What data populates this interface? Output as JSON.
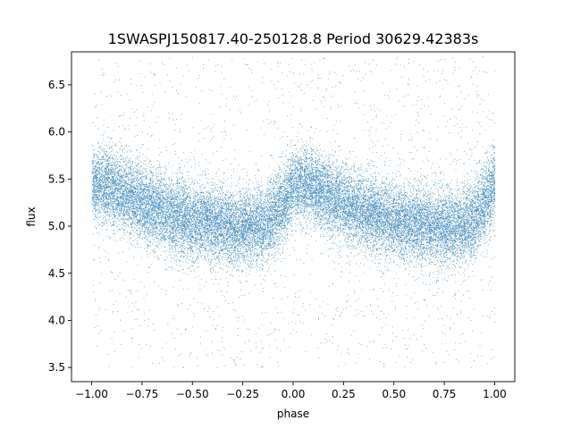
{
  "chart_data": {
    "type": "scatter",
    "title": "1SWASPJ150817.40-250128.8 Period 30629.42383s",
    "xlabel": "phase",
    "ylabel": "flux",
    "xlim": [
      -1.1,
      1.1
    ],
    "ylim": [
      3.35,
      6.85
    ],
    "x_ticks": [
      -1.0,
      -0.75,
      -0.5,
      -0.25,
      0.0,
      0.25,
      0.5,
      0.75,
      1.0
    ],
    "x_tick_labels": [
      "−1.00",
      "−0.75",
      "−0.50",
      "−0.25",
      "0.00",
      "0.25",
      "0.50",
      "0.75",
      "1.00"
    ],
    "y_ticks": [
      3.5,
      4.0,
      4.5,
      5.0,
      5.5,
      6.0,
      6.5
    ],
    "y_tick_labels": [
      "3.5",
      "4.0",
      "4.5",
      "5.0",
      "5.5",
      "6.0",
      "6.5"
    ],
    "grid": false,
    "point_color": "#1f77b4",
    "phase_range": [
      -1.0,
      1.0
    ],
    "flux_range": [
      3.5,
      6.8
    ],
    "mean_curve": {
      "phase": [
        0.0,
        0.05,
        0.1,
        0.15,
        0.2,
        0.3,
        0.4,
        0.5,
        0.6,
        0.7,
        0.75,
        0.8,
        0.85,
        0.9,
        0.95,
        1.0
      ],
      "flux": [
        5.45,
        5.45,
        5.42,
        5.36,
        5.3,
        5.19,
        5.11,
        5.06,
        5.03,
        5.0,
        4.98,
        4.99,
        5.02,
        5.1,
        5.25,
        5.45
      ]
    },
    "scatter_sigma": 0.2,
    "n_points": 26000
  }
}
